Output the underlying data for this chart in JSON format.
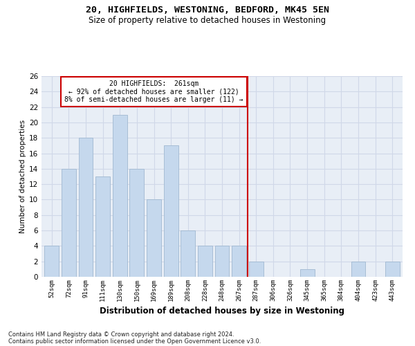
{
  "title1": "20, HIGHFIELDS, WESTONING, BEDFORD, MK45 5EN",
  "title2": "Size of property relative to detached houses in Westoning",
  "xlabel": "Distribution of detached houses by size in Westoning",
  "ylabel": "Number of detached properties",
  "footer1": "Contains HM Land Registry data © Crown copyright and database right 2024.",
  "footer2": "Contains public sector information licensed under the Open Government Licence v3.0.",
  "bar_labels": [
    "52sqm",
    "72sqm",
    "91sqm",
    "111sqm",
    "130sqm",
    "150sqm",
    "169sqm",
    "189sqm",
    "208sqm",
    "228sqm",
    "248sqm",
    "267sqm",
    "287sqm",
    "306sqm",
    "326sqm",
    "345sqm",
    "365sqm",
    "384sqm",
    "404sqm",
    "423sqm",
    "443sqm"
  ],
  "bar_values": [
    4,
    14,
    18,
    13,
    21,
    14,
    10,
    17,
    6,
    4,
    4,
    4,
    2,
    0,
    0,
    1,
    0,
    0,
    2,
    0,
    2
  ],
  "bar_color": "#c5d8ed",
  "bar_edge_color": "#a0b8d0",
  "grid_color": "#d0d8e8",
  "background_color": "#e8eef6",
  "vline_x_index": 11.5,
  "vline_color": "#cc0000",
  "annotation_text": "20 HIGHFIELDS:  261sqm\n← 92% of detached houses are smaller (122)\n8% of semi-detached houses are larger (11) →",
  "annotation_box_color": "#ffffff",
  "annotation_box_edge": "#cc0000",
  "ylim": [
    0,
    26
  ],
  "yticks": [
    0,
    2,
    4,
    6,
    8,
    10,
    12,
    14,
    16,
    18,
    20,
    22,
    24,
    26
  ]
}
